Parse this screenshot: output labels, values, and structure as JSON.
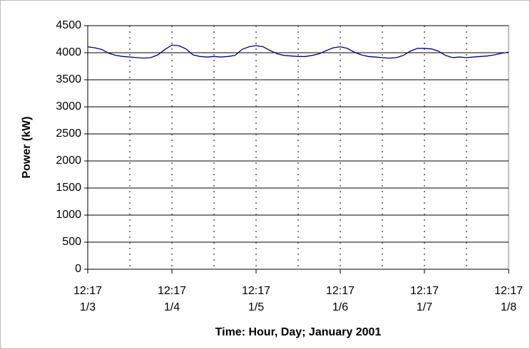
{
  "chart_data": {
    "type": "line",
    "xlabel": "Time: Hour, Day; January 2001",
    "ylabel": "Power (kW)",
    "ylim": [
      0,
      4500
    ],
    "yticks": [
      0,
      500,
      1000,
      1500,
      2000,
      2500,
      3000,
      3500,
      4000,
      4500
    ],
    "xlim": [
      "2001-01-03T12:17",
      "2001-01-08T12:17"
    ],
    "xticks": [
      {
        "value": "2001-01-03T12:17",
        "label": [
          "12:17",
          "1/3"
        ]
      },
      {
        "value": "2001-01-04T12:17",
        "label": [
          "12:17",
          "1/4"
        ]
      },
      {
        "value": "2001-01-05T12:17",
        "label": [
          "12:17",
          "1/5"
        ]
      },
      {
        "value": "2001-01-06T12:17",
        "label": [
          "12:17",
          "1/6"
        ]
      },
      {
        "value": "2001-01-07T12:17",
        "label": [
          "12:17",
          "1/7"
        ]
      },
      {
        "value": "2001-01-08T12:17",
        "label": [
          "12:17",
          "1/8"
        ]
      }
    ],
    "xminorticks": [
      "2001-01-04T00:17",
      "2001-01-05T00:17",
      "2001-01-06T00:17",
      "2001-01-07T00:17",
      "2001-01-08T00:17"
    ],
    "grid": true,
    "x": [
      "2001-01-03T12:17",
      "2001-01-03T14:17",
      "2001-01-03T16:17",
      "2001-01-03T18:17",
      "2001-01-03T20:17",
      "2001-01-03T22:17",
      "2001-01-04T00:17",
      "2001-01-04T02:17",
      "2001-01-04T04:17",
      "2001-01-04T06:17",
      "2001-01-04T08:17",
      "2001-01-04T10:17",
      "2001-01-04T12:17",
      "2001-01-04T14:17",
      "2001-01-04T16:17",
      "2001-01-04T18:17",
      "2001-01-04T20:17",
      "2001-01-04T22:17",
      "2001-01-05T00:17",
      "2001-01-05T02:17",
      "2001-01-05T04:17",
      "2001-01-05T06:17",
      "2001-01-05T08:17",
      "2001-01-05T10:17",
      "2001-01-05T12:17",
      "2001-01-05T14:17",
      "2001-01-05T16:17",
      "2001-01-05T18:17",
      "2001-01-05T20:17",
      "2001-01-05T22:17",
      "2001-01-06T00:17",
      "2001-01-06T02:17",
      "2001-01-06T04:17",
      "2001-01-06T06:17",
      "2001-01-06T08:17",
      "2001-01-06T10:17",
      "2001-01-06T12:17",
      "2001-01-06T14:17",
      "2001-01-06T16:17",
      "2001-01-06T18:17",
      "2001-01-06T20:17",
      "2001-01-06T22:17",
      "2001-01-07T00:17",
      "2001-01-07T02:17",
      "2001-01-07T04:17",
      "2001-01-07T06:17",
      "2001-01-07T08:17",
      "2001-01-07T10:17",
      "2001-01-07T12:17",
      "2001-01-07T14:17",
      "2001-01-07T16:17",
      "2001-01-07T18:17",
      "2001-01-07T20:17",
      "2001-01-07T22:17",
      "2001-01-08T00:17",
      "2001-01-08T02:17",
      "2001-01-08T04:17",
      "2001-01-08T06:17",
      "2001-01-08T08:17",
      "2001-01-08T10:17",
      "2001-01-08T12:17"
    ],
    "series": [
      {
        "color": "#000080",
        "values": [
          4110,
          4090,
          4060,
          3990,
          3950,
          3930,
          3920,
          3910,
          3900,
          3910,
          3960,
          4060,
          4140,
          4130,
          4070,
          3960,
          3930,
          3920,
          3930,
          3920,
          3930,
          3950,
          4060,
          4110,
          4130,
          4110,
          4040,
          3980,
          3950,
          3940,
          3930,
          3930,
          3950,
          3980,
          4040,
          4090,
          4110,
          4080,
          4010,
          3960,
          3930,
          3920,
          3910,
          3900,
          3910,
          3950,
          4030,
          4080,
          4080,
          4070,
          4030,
          3950,
          3910,
          3920,
          3910,
          3920,
          3930,
          3940,
          3960,
          3990,
          4010
        ]
      }
    ]
  }
}
